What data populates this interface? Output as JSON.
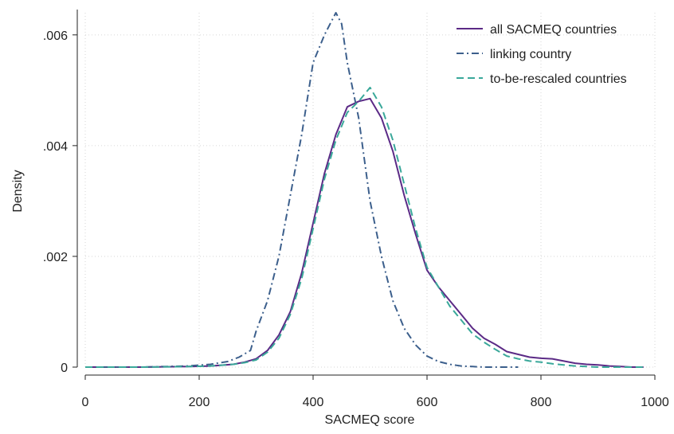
{
  "chart_data": {
    "type": "line",
    "xlabel": "SACMEQ score",
    "ylabel": "Density",
    "xlim": [
      0,
      1000
    ],
    "ylim": [
      0,
      0.0064
    ],
    "xticks": [
      0,
      200,
      400,
      600,
      800,
      1000
    ],
    "xtick_labels": [
      "0",
      "200",
      "400",
      "600",
      "800",
      "1000"
    ],
    "yticks": [
      0,
      0.002,
      0.004,
      0.006
    ],
    "ytick_labels": [
      "0",
      ".002",
      ".004",
      ".006"
    ],
    "grid": true,
    "legend_position": "top-right",
    "series": [
      {
        "name": "all SACMEQ countries",
        "color": "#5b2a86",
        "dash": "solid",
        "x": [
          0,
          100,
          180,
          220,
          260,
          280,
          300,
          320,
          340,
          360,
          380,
          400,
          420,
          440,
          460,
          480,
          500,
          520,
          540,
          560,
          580,
          600,
          620,
          640,
          660,
          680,
          700,
          720,
          740,
          760,
          780,
          800,
          820,
          840,
          860,
          880,
          900,
          920,
          940,
          960,
          980
        ],
        "y": [
          0,
          0,
          1e-05,
          2e-05,
          5e-05,
          9e-05,
          0.00015,
          0.0003,
          0.00058,
          0.001,
          0.0017,
          0.0026,
          0.0035,
          0.0042,
          0.0047,
          0.0048,
          0.00485,
          0.0045,
          0.0039,
          0.0031,
          0.0024,
          0.00175,
          0.00145,
          0.0012,
          0.00095,
          0.0007,
          0.00052,
          0.00041,
          0.00028,
          0.00023,
          0.00018,
          0.00016,
          0.00015,
          0.00011,
          7e-05,
          5e-05,
          4e-05,
          2e-05,
          1e-05,
          0,
          0
        ]
      },
      {
        "name": "linking country",
        "color": "#3c5f8c",
        "dash": "dashdot",
        "x": [
          0,
          100,
          180,
          220,
          250,
          270,
          290,
          300,
          320,
          340,
          360,
          380,
          400,
          420,
          430,
          440,
          445,
          450,
          460,
          480,
          500,
          520,
          540,
          560,
          580,
          600,
          620,
          640,
          660,
          680,
          700,
          720,
          740,
          760
        ],
        "y": [
          0,
          0,
          2e-05,
          5e-05,
          0.0001,
          0.00018,
          0.0003,
          0.00065,
          0.0012,
          0.002,
          0.0031,
          0.0042,
          0.0055,
          0.006,
          0.0062,
          0.0064,
          0.0063,
          0.0062,
          0.0055,
          0.0045,
          0.003,
          0.002,
          0.0012,
          0.0007,
          0.0004,
          0.0002,
          0.0001,
          5e-05,
          2e-05,
          1e-05,
          0,
          0,
          0,
          0
        ]
      },
      {
        "name": "to-be-rescaled countries",
        "color": "#3aa89a",
        "dash": "dashed",
        "x": [
          0,
          100,
          180,
          220,
          260,
          280,
          300,
          320,
          340,
          360,
          380,
          400,
          420,
          440,
          460,
          480,
          500,
          520,
          540,
          560,
          580,
          600,
          620,
          640,
          660,
          680,
          700,
          720,
          740,
          760,
          780,
          800,
          820,
          840,
          860,
          880,
          900,
          920,
          940,
          960,
          980
        ],
        "y": [
          0,
          0,
          1e-05,
          2e-05,
          5e-05,
          8e-05,
          0.00013,
          0.00027,
          0.00052,
          0.00095,
          0.0016,
          0.0025,
          0.0034,
          0.0041,
          0.0046,
          0.0048,
          0.00505,
          0.0047,
          0.0041,
          0.0033,
          0.0025,
          0.0018,
          0.00145,
          0.0011,
          0.00085,
          0.0006,
          0.00045,
          0.00032,
          0.0002,
          0.00015,
          0.00011,
          9e-05,
          6e-05,
          4e-05,
          2e-05,
          1e-05,
          0,
          0,
          0,
          0,
          0
        ]
      }
    ]
  }
}
